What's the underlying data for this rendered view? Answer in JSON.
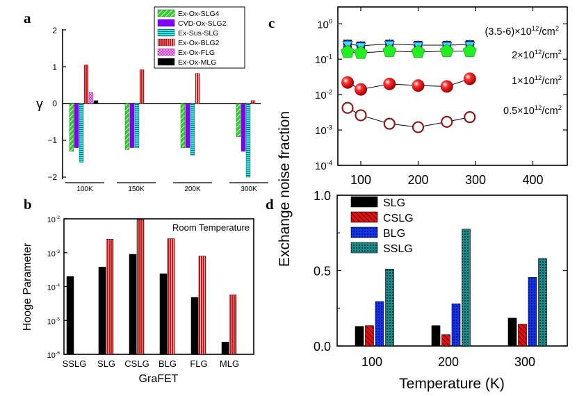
{
  "panels": {
    "a": "a",
    "b": "b",
    "c": "c",
    "d": "d"
  },
  "colors": {
    "green": "#33cc33",
    "purple": "#7f00ff",
    "cyan": "#33e5e5",
    "red": "#dd1111",
    "magenta": "#dd22dd",
    "black": "#000000",
    "blue": "#1133ee",
    "teal": "#1a8c8c"
  },
  "chart_data": [
    {
      "id": "a",
      "type": "bar",
      "ylabel": "γ",
      "xlabel": "",
      "ylim": [
        -2,
        2
      ],
      "yticks": [
        "2",
        "1",
        "0",
        "−1",
        "−2"
      ],
      "categories": [
        "100K",
        "150K",
        "200K",
        "300K"
      ],
      "series": [
        {
          "name": "Ex-Ox-SLG4",
          "color": "green",
          "pattern": "diag",
          "values": [
            -1.3,
            -1.25,
            -1.2,
            -0.9
          ]
        },
        {
          "name": "CVD-Ox-SLG2",
          "color": "purple",
          "pattern": "solid",
          "values": [
            -1.2,
            -1.2,
            -1.2,
            -1.3
          ]
        },
        {
          "name": "Ex-Sus-SLG",
          "color": "cyan",
          "pattern": "hlines",
          "values": [
            -1.6,
            -1.2,
            -1.4,
            -2.0
          ]
        },
        {
          "name": "Ex-Ox-BLG2",
          "color": "red",
          "pattern": "vlines",
          "values": [
            1.05,
            0.92,
            0.82,
            0.08
          ]
        },
        {
          "name": "Ex-Ox-FLG",
          "color": "magenta",
          "pattern": "cross",
          "values": [
            0.3,
            null,
            null,
            null
          ]
        },
        {
          "name": "Ex-Ox-MLG",
          "color": "black",
          "pattern": "solid",
          "values": [
            0.08,
            null,
            null,
            null
          ]
        }
      ]
    },
    {
      "id": "b",
      "type": "bar",
      "title": "Room Temperature",
      "xlabel": "GraFET",
      "ylabel": "Hooge Parameter",
      "yscale": "log",
      "ylim": [
        1e-06,
        0.01
      ],
      "yticks": [
        {
          "base": "10",
          "exp": "-2"
        },
        {
          "base": "10",
          "exp": "-3"
        },
        {
          "base": "10",
          "exp": "-4"
        },
        {
          "base": "10",
          "exp": "-5"
        },
        {
          "base": "10",
          "exp": "-6"
        }
      ],
      "categories": [
        "SSLG",
        "SLG",
        "CSLG",
        "BLG",
        "FLG",
        "MLG"
      ],
      "series": [
        {
          "name": "black",
          "color": "black",
          "pattern": "solid",
          "values": [
            0.0002,
            0.00038,
            0.0009,
            0.00024,
            4.8e-05,
            2.3e-06
          ]
        },
        {
          "name": "red",
          "color": "red",
          "pattern": "vlines",
          "values": [
            null,
            0.0025,
            0.0095,
            0.0026,
            0.0008,
            5.7e-05
          ]
        }
      ]
    },
    {
      "id": "c",
      "type": "scatter",
      "ylabel": "Exchange noise fraction",
      "yscale": "log",
      "xlim": [
        60,
        460
      ],
      "ylim": [
        0.0001,
        3
      ],
      "xticks": [
        "100",
        "200",
        "300",
        "400"
      ],
      "xtick_values": [
        100,
        200,
        300,
        400
      ],
      "yticks": [
        {
          "base": "10",
          "exp": "0"
        },
        {
          "base": "10",
          "exp": "-1"
        },
        {
          "base": "10",
          "exp": "-2"
        },
        {
          "base": "10",
          "exp": "-3"
        },
        {
          "base": "10",
          "exp": "-4"
        }
      ],
      "x": [
        77,
        100,
        150,
        200,
        250,
        290
      ],
      "series": [
        {
          "name": "(3.5-6)×10",
          "sup": "12",
          "unit": "/cm",
          "unit_sup": "2",
          "marker": "multi",
          "values": [
            0.27,
            0.24,
            0.27,
            0.25,
            0.25,
            0.26
          ]
        },
        {
          "name": "2×10",
          "sup": "12",
          "unit": "/cm",
          "unit_sup": "2",
          "marker": "green-pentagon",
          "values": [
            0.16,
            0.15,
            0.17,
            0.16,
            0.17,
            0.17
          ]
        },
        {
          "name": "1×10",
          "sup": "12",
          "unit": "/cm",
          "unit_sup": "2",
          "marker": "red-sphere",
          "values": [
            0.022,
            0.014,
            0.02,
            0.018,
            0.017,
            0.028
          ]
        },
        {
          "name": "0.5×10",
          "sup": "12",
          "unit": "/cm",
          "unit_sup": "2",
          "marker": "open-circle",
          "values": [
            0.0042,
            0.0026,
            0.0015,
            0.0012,
            0.0017,
            0.0023
          ]
        }
      ]
    },
    {
      "id": "d",
      "type": "bar",
      "xlabel": "Temperature (K)",
      "ylabel": "",
      "ylim": [
        0,
        1.0
      ],
      "yticks": [
        "1.0",
        "0.5",
        "0.0"
      ],
      "ytick_values": [
        1.0,
        0.5,
        0.0
      ],
      "categories": [
        "100",
        "200",
        "300"
      ],
      "series": [
        {
          "name": "SLG",
          "color": "black",
          "pattern": "solid",
          "values": [
            0.13,
            0.135,
            0.185
          ]
        },
        {
          "name": "CSLG",
          "color": "red",
          "pattern": "diag",
          "values": [
            0.135,
            0.075,
            0.145
          ]
        },
        {
          "name": "BLG",
          "color": "blue",
          "pattern": "blueblock",
          "values": [
            0.295,
            0.28,
            0.455
          ]
        },
        {
          "name": "SSLG",
          "color": "teal",
          "pattern": "tealblock",
          "values": [
            0.51,
            0.775,
            0.58
          ]
        }
      ]
    }
  ]
}
